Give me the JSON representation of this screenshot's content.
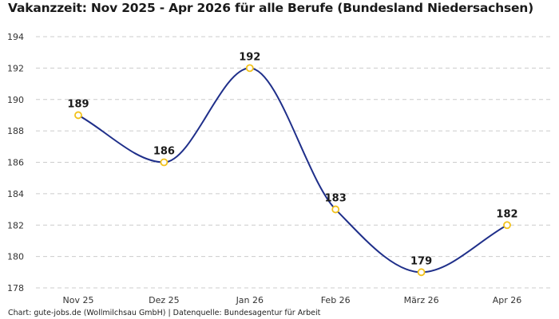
{
  "chart_data": {
    "type": "line",
    "title": "Vakanzzeit: Nov 2025 - Apr 2026 für alle Berufe (Bundesland Niedersachsen)",
    "categories": [
      "Nov 25",
      "Dez 25",
      "Jan 26",
      "Feb 26",
      "März 26",
      "Apr 26"
    ],
    "series": [
      {
        "values": [
          189,
          186,
          192,
          183,
          179,
          182
        ]
      }
    ],
    "ylim": [
      178,
      194
    ],
    "yticks": [
      178,
      180,
      182,
      184,
      186,
      188,
      190,
      192,
      194
    ],
    "grid": true,
    "data_labels": true,
    "colors": {
      "line": "#1f2f8a",
      "marker_stroke": "#f2c21b",
      "marker_fill": "#ffffff",
      "grid": "#cccccc"
    }
  },
  "footer": "Chart: gute-jobs.de (Wollmilchsau GmbH) | Datenquelle: Bundesagentur für Arbeit"
}
